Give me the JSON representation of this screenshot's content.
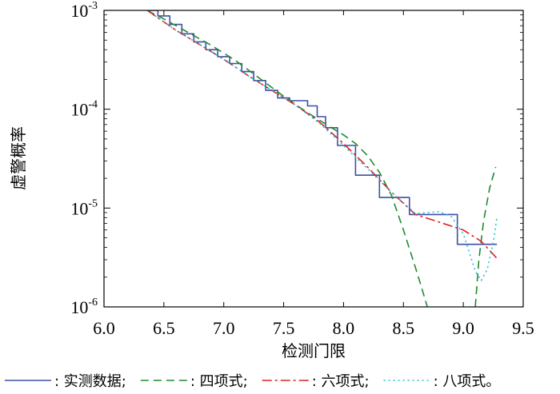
{
  "chart_data": {
    "type": "line",
    "xlabel": "检测门限",
    "ylabel": "虚警概率",
    "xlim": [
      6.0,
      9.5
    ],
    "ylim": [
      1e-06,
      0.001
    ],
    "yscale": "log",
    "grid": false,
    "legend_position": "bottom",
    "x_ticks": [
      "6.0",
      "6.5",
      "7.0",
      "7.5",
      "8.0",
      "8.5",
      "9.0",
      "9.5"
    ],
    "y_ticks": [
      {
        "base": "10",
        "exp": "-6",
        "value": 1e-06
      },
      {
        "base": "10",
        "exp": "-5",
        "value": 1e-05
      },
      {
        "base": "10",
        "exp": "-4",
        "value": 0.0001
      },
      {
        "base": "10",
        "exp": "-3",
        "value": 0.001
      }
    ],
    "series": [
      {
        "name": ": 实测数据;",
        "color": "#3b4fa8",
        "dash": "",
        "step": true,
        "x": [
          6.36,
          6.45,
          6.55,
          6.65,
          6.75,
          6.85,
          6.95,
          7.05,
          7.15,
          7.25,
          7.35,
          7.45,
          7.55,
          7.62,
          7.7,
          7.78,
          7.85,
          7.95,
          8.1,
          8.3,
          8.55,
          8.95,
          9.28
        ],
        "y": [
          0.001,
          0.00088,
          0.00072,
          0.00058,
          0.00048,
          0.0004,
          0.00034,
          0.00029,
          0.00024,
          0.000195,
          0.000155,
          0.00013,
          0.000122,
          0.000122,
          0.000108,
          8.4e-05,
          6.5e-05,
          4.3e-05,
          2.15e-05,
          1.28e-05,
          8.6e-06,
          4.3e-06,
          4.3e-06
        ]
      },
      {
        "name": ": 四项式;",
        "color": "#1f8a2e",
        "dash": "10,6",
        "step": false,
        "x": [
          6.36,
          6.5,
          6.7,
          6.9,
          7.1,
          7.3,
          7.5,
          7.7,
          7.9,
          8.0,
          8.1,
          8.2,
          8.3,
          8.4,
          8.5,
          8.6,
          8.65,
          8.68,
          8.7
        ],
        "y": [
          0.001,
          0.00082,
          0.0006,
          0.00044,
          0.00031,
          0.000205,
          0.000135,
          9.2e-05,
          6.5e-05,
          5.5e-05,
          4.5e-05,
          3.4e-05,
          2.3e-05,
          1.35e-05,
          6e-06,
          2.5e-06,
          1.6e-06,
          1.2e-06,
          1e-06
        ]
      },
      {
        "name": "",
        "color": "#1f8a2e",
        "dash": "10,6",
        "step": false,
        "x": [
          9.1,
          9.13,
          9.17,
          9.22,
          9.27
        ],
        "y": [
          1e-06,
          3e-06,
          7.5e-06,
          1.6e-05,
          2.6e-05
        ]
      },
      {
        "name": ": 六项式;",
        "color": "#e02020",
        "dash": "12,4,3,4",
        "step": false,
        "x": [
          6.36,
          6.6,
          6.8,
          7.0,
          7.2,
          7.4,
          7.6,
          7.8,
          8.0,
          8.2,
          8.4,
          8.6,
          8.8,
          9.0,
          9.15,
          9.28
        ],
        "y": [
          0.001,
          0.00063,
          0.00045,
          0.00032,
          0.00022,
          0.000155,
          0.00011,
          7.4e-05,
          4.5e-05,
          2.6e-05,
          1.45e-05,
          8.6e-06,
          7.2e-06,
          6e-06,
          4.6e-06,
          3.1e-06
        ]
      },
      {
        "name": ": 八项式。",
        "color": "#20c0d8",
        "dash": "2,4",
        "step": false,
        "x": [
          6.36,
          6.6,
          6.8,
          7.0,
          7.2,
          7.4,
          7.6,
          7.8,
          8.0,
          8.2,
          8.4,
          8.6,
          8.8,
          8.9,
          9.0,
          9.1,
          9.15,
          9.2,
          9.25,
          9.28
        ],
        "y": [
          0.001,
          0.00063,
          0.00045,
          0.00032,
          0.00022,
          0.000155,
          0.00011,
          7.2e-05,
          4.3e-05,
          2.5e-05,
          1.45e-05,
          8.8e-06,
          9.2e-06,
          8.2e-06,
          5.5e-06,
          2.3e-06,
          1.85e-06,
          2.4e-06,
          4.5e-06,
          8e-06
        ]
      }
    ]
  }
}
